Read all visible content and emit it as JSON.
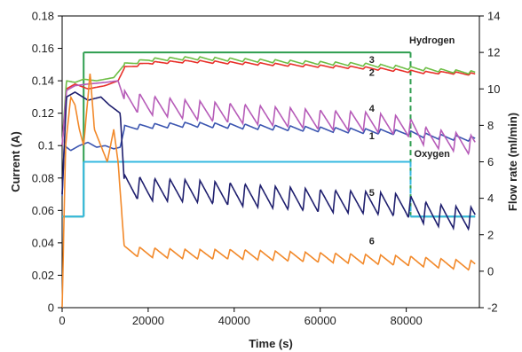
{
  "chart_data": {
    "type": "line",
    "xlabel": "Time (s)",
    "ylabel": "Current (A)",
    "y2label": "Flow rate (ml/min)",
    "xlim": [
      0,
      97000
    ],
    "ylim": [
      0,
      0.18
    ],
    "y2lim": [
      -2,
      14
    ],
    "x_ticks": [
      0,
      20000,
      40000,
      60000,
      80000
    ],
    "x_tick_labels": [
      "0",
      "20000",
      "40000",
      "60000",
      "80000"
    ],
    "y_ticks": [
      0,
      0.02,
      0.04,
      0.06,
      0.08,
      0.1,
      0.12,
      0.14,
      0.16,
      0.18
    ],
    "y_tick_labels": [
      "0",
      "0.02",
      "0.04",
      "0.06",
      "0.08",
      "0.1",
      "0.12",
      "0.14",
      "0.16",
      "0.18"
    ],
    "y2_ticks": [
      -2,
      0,
      2,
      4,
      6,
      8,
      10,
      12,
      14
    ],
    "y2_tick_labels": [
      "-2",
      "0",
      "2",
      "4",
      "6",
      "8",
      "10",
      "12",
      "14"
    ],
    "grid": false,
    "legend": "none",
    "current_series": [
      {
        "name": "1",
        "color": "#3B55B0",
        "axis": "left",
        "points": [
          [
            0,
            0.069
          ],
          [
            500,
            0.1
          ],
          [
            2000,
            0.097
          ],
          [
            4000,
            0.1
          ],
          [
            6000,
            0.102
          ],
          [
            8000,
            0.099
          ],
          [
            10000,
            0.1
          ],
          [
            12000,
            0.098
          ],
          [
            13500,
            0.099
          ],
          [
            14500,
            0.111
          ],
          [
            20000,
            0.112
          ],
          [
            30000,
            0.113
          ],
          [
            40000,
            0.112
          ],
          [
            50000,
            0.111
          ],
          [
            60000,
            0.11
          ],
          [
            70000,
            0.109
          ],
          [
            80000,
            0.108
          ],
          [
            85000,
            0.106
          ],
          [
            90000,
            0.105
          ],
          [
            96000,
            0.104
          ]
        ],
        "ripple": 0.003,
        "period": 3500
      },
      {
        "name": "2",
        "color": "#E8302A",
        "axis": "left",
        "points": [
          [
            0,
            0.1
          ],
          [
            1000,
            0.135
          ],
          [
            3000,
            0.138
          ],
          [
            6000,
            0.135
          ],
          [
            10000,
            0.137
          ],
          [
            13000,
            0.14
          ],
          [
            14500,
            0.148
          ],
          [
            20000,
            0.151
          ],
          [
            30000,
            0.152
          ],
          [
            40000,
            0.151
          ],
          [
            50000,
            0.15
          ],
          [
            60000,
            0.149
          ],
          [
            70000,
            0.148
          ],
          [
            80000,
            0.146
          ],
          [
            85000,
            0.145
          ],
          [
            90000,
            0.145
          ],
          [
            96000,
            0.144
          ]
        ],
        "ripple": 0.0015,
        "period": 3500
      },
      {
        "name": "3",
        "color": "#6DBE45",
        "axis": "left",
        "points": [
          [
            0,
            0.1
          ],
          [
            1000,
            0.14
          ],
          [
            3000,
            0.139
          ],
          [
            5000,
            0.141
          ],
          [
            8000,
            0.14
          ],
          [
            12000,
            0.142
          ],
          [
            14500,
            0.15
          ],
          [
            20000,
            0.153
          ],
          [
            30000,
            0.154
          ],
          [
            40000,
            0.153
          ],
          [
            50000,
            0.152
          ],
          [
            60000,
            0.151
          ],
          [
            70000,
            0.15
          ],
          [
            80000,
            0.148
          ],
          [
            85000,
            0.147
          ],
          [
            90000,
            0.146
          ],
          [
            96000,
            0.145
          ]
        ],
        "ripple": 0.002,
        "period": 3500
      },
      {
        "name": "4",
        "color": "#B65BB8",
        "axis": "left",
        "points": [
          [
            0,
            0.1
          ],
          [
            1000,
            0.134
          ],
          [
            3000,
            0.137
          ],
          [
            6000,
            0.138
          ],
          [
            10000,
            0.139
          ],
          [
            13000,
            0.14
          ],
          [
            14500,
            0.128
          ],
          [
            20000,
            0.125
          ],
          [
            30000,
            0.122
          ],
          [
            40000,
            0.12
          ],
          [
            50000,
            0.118
          ],
          [
            60000,
            0.116
          ],
          [
            70000,
            0.115
          ],
          [
            80000,
            0.112
          ],
          [
            85000,
            0.105
          ],
          [
            90000,
            0.103
          ],
          [
            96000,
            0.1
          ]
        ],
        "ripple": 0.012,
        "period": 3500
      },
      {
        "name": "5",
        "color": "#1F1F6E",
        "axis": "left",
        "points": [
          [
            0,
            0.07
          ],
          [
            1000,
            0.13
          ],
          [
            3000,
            0.133
          ],
          [
            6000,
            0.128
          ],
          [
            9000,
            0.13
          ],
          [
            11000,
            0.125
          ],
          [
            13500,
            0.12
          ],
          [
            14500,
            0.075
          ],
          [
            20000,
            0.073
          ],
          [
            30000,
            0.072
          ],
          [
            40000,
            0.07
          ],
          [
            50000,
            0.068
          ],
          [
            60000,
            0.066
          ],
          [
            70000,
            0.065
          ],
          [
            80000,
            0.063
          ],
          [
            85000,
            0.058
          ],
          [
            90000,
            0.056
          ],
          [
            96000,
            0.055
          ]
        ],
        "ripple": 0.014,
        "period": 3500
      },
      {
        "name": "6",
        "color": "#F2892A",
        "axis": "left",
        "points": [
          [
            0,
            0.0
          ],
          [
            800,
            0.1
          ],
          [
            2000,
            0.13
          ],
          [
            3000,
            0.125
          ],
          [
            4000,
            0.11
          ],
          [
            5000,
            0.1
          ],
          [
            6500,
            0.145
          ],
          [
            7500,
            0.11
          ],
          [
            9000,
            0.1
          ],
          [
            10500,
            0.09
          ],
          [
            12000,
            0.11
          ],
          [
            13000,
            0.09
          ],
          [
            14500,
            0.035
          ],
          [
            20000,
            0.034
          ],
          [
            30000,
            0.033
          ],
          [
            40000,
            0.033
          ],
          [
            50000,
            0.032
          ],
          [
            60000,
            0.031
          ],
          [
            70000,
            0.03
          ],
          [
            80000,
            0.029
          ],
          [
            85000,
            0.028
          ],
          [
            90000,
            0.027
          ],
          [
            96000,
            0.026
          ]
        ],
        "ripple": 0.006,
        "period": 3500
      }
    ],
    "flow_series": [
      {
        "name": "Hydrogen",
        "color": "#2E9E4F",
        "axis": "right",
        "points": [
          [
            0,
            3
          ],
          [
            5000,
            3
          ],
          [
            5000,
            12
          ],
          [
            81000,
            12
          ],
          [
            81000,
            3
          ],
          [
            96000,
            3
          ]
        ]
      },
      {
        "name": "Oxygen",
        "color": "#35B8E0",
        "axis": "right",
        "points": [
          [
            0,
            3
          ],
          [
            5000,
            3
          ],
          [
            5000,
            6
          ],
          [
            81000,
            6
          ],
          [
            81000,
            3
          ],
          [
            96000,
            3
          ]
        ]
      }
    ],
    "annotations": [
      {
        "text": "Hydrogen",
        "x": 86000,
        "y": 0.163,
        "axis": "left"
      },
      {
        "text": "Oxygen",
        "x": 86000,
        "y": 0.093,
        "axis": "left"
      },
      {
        "text": "3",
        "x": 72000,
        "y": 0.151,
        "axis": "left"
      },
      {
        "text": "2",
        "x": 72000,
        "y": 0.143,
        "axis": "left"
      },
      {
        "text": "4",
        "x": 72000,
        "y": 0.121,
        "axis": "left"
      },
      {
        "text": "1",
        "x": 72000,
        "y": 0.104,
        "axis": "left"
      },
      {
        "text": "5",
        "x": 72000,
        "y": 0.069,
        "axis": "left"
      },
      {
        "text": "6",
        "x": 72000,
        "y": 0.039,
        "axis": "left"
      }
    ]
  }
}
